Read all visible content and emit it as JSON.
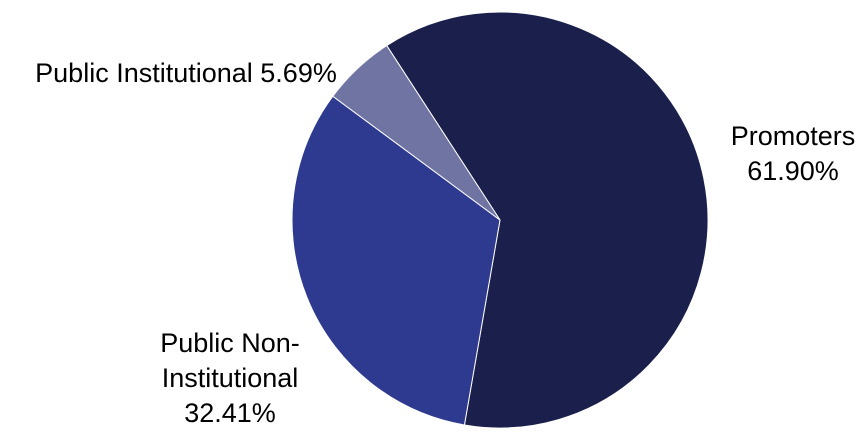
{
  "chart_data": {
    "type": "pie",
    "title": "",
    "slices": [
      {
        "name": "Promoters",
        "value": 61.9,
        "label_lines": [
          "Promoters",
          "61.90%"
        ],
        "color": "#1a1f4b"
      },
      {
        "name": "Public Non-Institutional",
        "value": 32.41,
        "label_lines": [
          "Public Non-",
          "Institutional",
          "32.41%"
        ],
        "color": "#2e3a8f"
      },
      {
        "name": "Public Institutional",
        "value": 5.69,
        "label_lines": [
          "Public Institutional 5.69%"
        ],
        "color": "#6f74a3"
      }
    ],
    "legend": "none",
    "data_labels": "outside"
  }
}
